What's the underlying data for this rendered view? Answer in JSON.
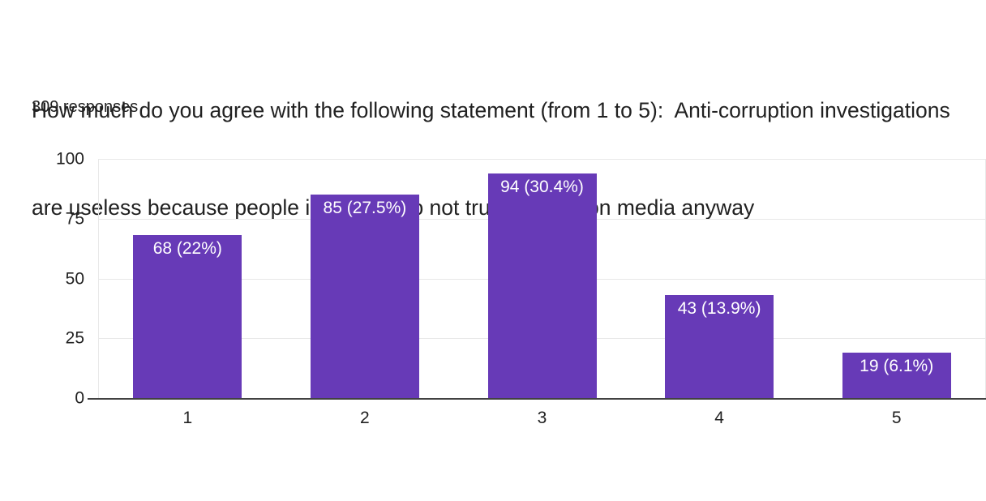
{
  "header": {
    "title": "How much do you agree with the following statement (from 1 to 5):  Anti-corruption investigations are useless because people in Russia do not trust opposition media anyway",
    "title_lines": [
      "How much do you agree with the following statement (from 1 to 5):  Anti-corruption investigations",
      "are useless because people in Russia do not trust opposition media anyway"
    ],
    "responses_label": "309 responses"
  },
  "colors": {
    "background": "#ffffff",
    "bar": "#673ab7",
    "bar_label_text": "#ffffff",
    "title_text": "#212121",
    "tick_text": "#212121",
    "gridline": "#e8e8e8",
    "axis_line": "#424242"
  },
  "chart_data": {
    "type": "bar",
    "title": "How much do you agree with the following statement (from 1 to 5):  Anti-corruption investigations are useless because people in Russia do not trust opposition media anyway",
    "subtitle": "309 responses",
    "categories": [
      "1",
      "2",
      "3",
      "4",
      "5"
    ],
    "values": [
      68,
      85,
      94,
      43,
      19
    ],
    "percentages": [
      22,
      27.5,
      30.4,
      13.9,
      6.1
    ],
    "bar_labels": [
      "68 (22%)",
      "85 (27.5%)",
      "94 (30.4%)",
      "43 (13.9%)",
      "19 (6.1%)"
    ],
    "xlabel": "",
    "ylabel": "",
    "y_ticks": [
      0,
      25,
      50,
      75,
      100
    ],
    "ylim": [
      0,
      100
    ],
    "grid": "horizontal",
    "legend": "none",
    "bar_color": "#673ab7"
  }
}
